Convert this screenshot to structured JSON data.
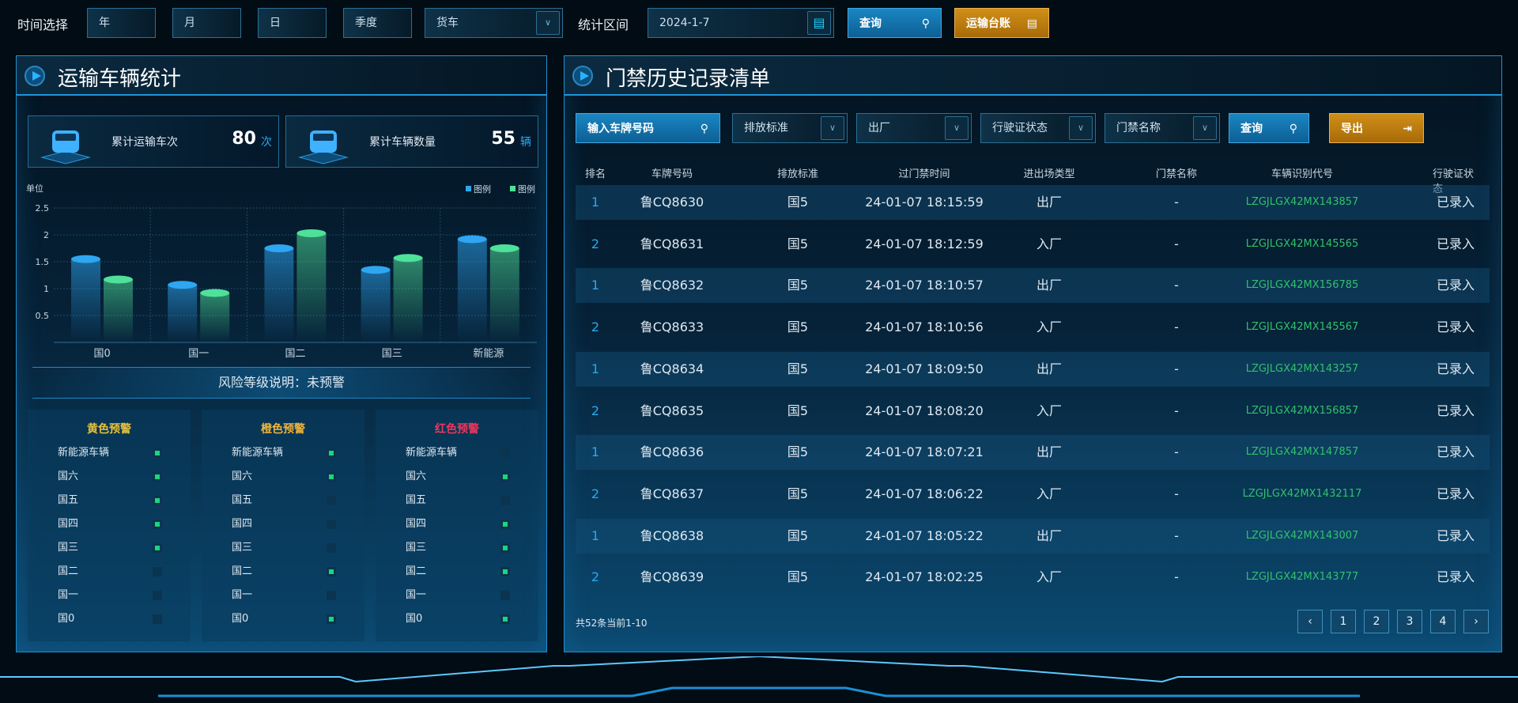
{
  "topbar": {
    "time_label": "时间选择",
    "year": "年",
    "month": "月",
    "day": "日",
    "quarter": "季度",
    "vehicle_type": "货车",
    "range_label": "统计区间",
    "date": "2024-1-7",
    "query": "查询",
    "ledger": "运输台账"
  },
  "left": {
    "title": "运输车辆统计",
    "stats": [
      {
        "label": "累计运输车次",
        "value": "80",
        "unit": "次"
      },
      {
        "label": "累计车辆数量",
        "value": "55",
        "unit": "辆"
      }
    ],
    "risk": "风险等级说明：未预警",
    "warnings": [
      {
        "title": "黄色预警",
        "color": "#e8c23a",
        "items": [
          [
            "新能源车辆",
            true
          ],
          [
            "国六",
            true
          ],
          [
            "国五",
            true
          ],
          [
            "国四",
            true
          ],
          [
            "国三",
            true
          ],
          [
            "国二",
            false
          ],
          [
            "国一",
            false
          ],
          [
            "国0",
            false
          ]
        ]
      },
      {
        "title": "橙色预警",
        "color": "#f0b53a",
        "items": [
          [
            "新能源车辆",
            true
          ],
          [
            "国六",
            true
          ],
          [
            "国五",
            false
          ],
          [
            "国四",
            false
          ],
          [
            "国三",
            false
          ],
          [
            "国二",
            true
          ],
          [
            "国一",
            false
          ],
          [
            "国0",
            true
          ]
        ]
      },
      {
        "title": "红色预警",
        "color": "#f0365c",
        "items": [
          [
            "新能源车辆",
            false
          ],
          [
            "国六",
            true
          ],
          [
            "国五",
            false
          ],
          [
            "国四",
            true
          ],
          [
            "国三",
            true
          ],
          [
            "国二",
            true
          ],
          [
            "国一",
            false
          ],
          [
            "国0",
            true
          ]
        ]
      }
    ]
  },
  "chart_data": {
    "type": "bar",
    "ylabel": "单位",
    "categories": [
      "国0",
      "国一",
      "国二",
      "国三",
      "新能源"
    ],
    "ylim": [
      0,
      2.5
    ],
    "yticks": [
      "0.5",
      "1",
      "1.5",
      "2",
      "2.5"
    ],
    "grid": true,
    "legend": "top-right",
    "series": [
      {
        "name": "图例",
        "color": "#2ea6f2",
        "values": [
          1.55,
          1.07,
          1.75,
          1.35,
          1.92
        ]
      },
      {
        "name": "图例",
        "color": "#4fe09a",
        "values": [
          1.17,
          0.92,
          2.03,
          1.57,
          1.75
        ]
      }
    ]
  },
  "right": {
    "title": "门禁历史记录清单",
    "filters": {
      "plate_placeholder": "输入车牌号码",
      "emission": "排放标准",
      "direction": "出厂",
      "license": "行驶证状态",
      "gate": "门禁名称",
      "query": "查询",
      "export": "导出"
    },
    "columns": [
      "排名",
      "车牌号码",
      "排放标准",
      "过门禁时间",
      "进出场类型",
      "门禁名称",
      "车辆识别代号",
      "行驶证状态"
    ],
    "rows": [
      [
        "1",
        "鲁CQ8630",
        "国5",
        "24-01-07 18:15:59",
        "出厂",
        "-",
        "LZGJLGX42MX143857",
        "已录入"
      ],
      [
        "2",
        "鲁CQ8631",
        "国5",
        "24-01-07 18:12:59",
        "入厂",
        "-",
        "LZGJLGX42MX145565",
        "已录入"
      ],
      [
        "1",
        "鲁CQ8632",
        "国5",
        "24-01-07 18:10:57",
        "出厂",
        "-",
        "LZGJLGX42MX156785",
        "已录入"
      ],
      [
        "2",
        "鲁CQ8633",
        "国5",
        "24-01-07 18:10:56",
        "入厂",
        "-",
        "LZGJLGX42MX145567",
        "已录入"
      ],
      [
        "1",
        "鲁CQ8634",
        "国5",
        "24-01-07 18:09:50",
        "出厂",
        "-",
        "LZGJLGX42MX143257",
        "已录入"
      ],
      [
        "2",
        "鲁CQ8635",
        "国5",
        "24-01-07 18:08:20",
        "入厂",
        "-",
        "LZGJLGX42MX156857",
        "已录入"
      ],
      [
        "1",
        "鲁CQ8636",
        "国5",
        "24-01-07 18:07:21",
        "出厂",
        "-",
        "LZGJLGX42MX147857",
        "已录入"
      ],
      [
        "2",
        "鲁CQ8637",
        "国5",
        "24-01-07 18:06:22",
        "入厂",
        "-",
        "LZGJLGX42MX1432117",
        "已录入"
      ],
      [
        "1",
        "鲁CQ8638",
        "国5",
        "24-01-07 18:05:22",
        "出厂",
        "-",
        "LZGJLGX42MX143007",
        "已录入"
      ],
      [
        "2",
        "鲁CQ8639",
        "国5",
        "24-01-07 18:02:25",
        "入厂",
        "-",
        "LZGJLGX42MX143777",
        "已录入"
      ]
    ],
    "total": "共52条当前1-10",
    "pages": [
      "‹",
      "1",
      "2",
      "3",
      "4",
      "›"
    ]
  }
}
